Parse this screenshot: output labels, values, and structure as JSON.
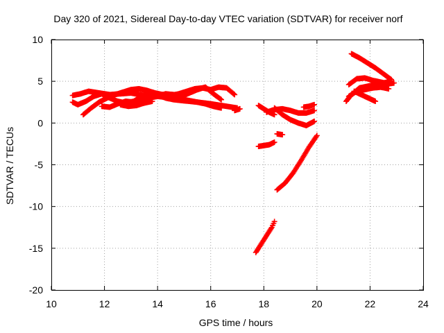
{
  "chart_data": {
    "type": "scatter",
    "title": "Day 320 of 2021, Sidereal Day-to-day VTEC variation (SDTVAR) for receiver norf",
    "xlabel": "GPS time / hours",
    "ylabel": "SDTVAR / TECUs",
    "xlim": [
      10,
      24
    ],
    "ylim": [
      -20,
      10
    ],
    "xticks": [
      "10",
      "12",
      "14",
      "16",
      "18",
      "20",
      "22",
      "24"
    ],
    "yticks": [
      "-20",
      "-15",
      "-10",
      "-5",
      "0",
      "5",
      "10"
    ],
    "grid": true,
    "marker_color": "#ff0000",
    "series": [
      {
        "x": [
          10.8,
          11.1,
          11.4,
          11.8,
          12.2,
          12.6,
          13.0,
          13.5,
          14.0,
          14.5,
          15.0,
          15.5,
          16.0,
          16.4,
          16.8,
          17.0
        ],
        "y": [
          3.3,
          3.5,
          3.8,
          3.6,
          3.4,
          3.5,
          3.6,
          3.3,
          3.2,
          3.0,
          2.8,
          2.5,
          2.3,
          2.1,
          1.9,
          1.8
        ]
      },
      {
        "x": [
          10.8,
          11.0,
          11.3,
          11.6,
          11.9,
          12.2,
          12.5,
          12.8,
          13.1,
          13.4,
          13.7,
          14.0,
          14.3,
          14.6,
          14.9,
          15.2,
          15.5,
          15.8,
          16.1,
          16.4
        ],
        "y": [
          2.5,
          2.2,
          2.6,
          3.2,
          3.5,
          3.0,
          2.6,
          2.4,
          2.6,
          3.2,
          3.6,
          3.4,
          3.0,
          2.8,
          2.7,
          2.6,
          2.5,
          2.3,
          2.0,
          1.8
        ]
      },
      {
        "x": [
          11.2,
          11.5,
          11.8,
          12.1,
          12.4,
          12.7,
          13.0,
          13.3,
          13.6,
          13.9,
          14.2,
          14.5,
          14.8,
          15.1,
          15.4,
          15.7,
          16.0,
          16.3,
          16.6,
          16.9
        ],
        "y": [
          1.0,
          1.8,
          2.5,
          3.0,
          3.4,
          3.7,
          4.0,
          4.1,
          3.9,
          3.6,
          3.4,
          3.3,
          3.5,
          3.8,
          4.1,
          4.2,
          4.0,
          4.3,
          4.2,
          3.4
        ]
      },
      {
        "x": [
          11.9,
          12.2,
          12.5,
          12.8,
          13.1,
          13.4,
          13.7,
          14.0,
          14.3,
          14.6,
          14.9,
          15.2,
          15.5,
          15.8,
          16.1,
          16.4
        ],
        "y": [
          2.0,
          1.9,
          2.3,
          2.6,
          2.5,
          2.8,
          3.0,
          3.2,
          3.5,
          3.4,
          3.2,
          3.6,
          4.0,
          4.3,
          3.5,
          2.8
        ]
      },
      {
        "x": [
          12.6,
          12.9,
          13.2,
          13.5,
          13.8
        ],
        "y": [
          2.2,
          2.0,
          2.1,
          2.4,
          2.6
        ]
      },
      {
        "x": [
          16.9,
          17.1
        ],
        "y": [
          1.5,
          1.7
        ]
      },
      {
        "x": [
          17.8,
          18.0,
          18.2,
          18.4
        ],
        "y": [
          2.1,
          1.7,
          1.3,
          1.0
        ]
      },
      {
        "x": [
          18.1,
          18.4,
          18.7,
          19.0,
          19.3,
          19.6,
          19.9
        ],
        "y": [
          1.3,
          1.6,
          1.7,
          1.5,
          1.2,
          1.2,
          1.5
        ]
      },
      {
        "x": [
          18.4,
          18.7,
          19.0,
          19.3,
          19.6,
          19.9
        ],
        "y": [
          1.8,
          1.0,
          0.4,
          0.0,
          -0.3,
          0.2
        ]
      },
      {
        "x": [
          19.5,
          19.7,
          19.9
        ],
        "y": [
          1.9,
          2.0,
          2.2
        ]
      },
      {
        "x": [
          17.8,
          18.0,
          18.2,
          18.4
        ],
        "y": [
          -2.8,
          -2.7,
          -2.6,
          -2.3
        ]
      },
      {
        "x": [
          18.5,
          18.7
        ],
        "y": [
          -1.3,
          -1.4
        ]
      },
      {
        "x": [
          18.5,
          18.8,
          19.1,
          19.4,
          19.7,
          20.0
        ],
        "y": [
          -8.0,
          -7.2,
          -6.0,
          -4.5,
          -2.9,
          -1.5
        ]
      },
      {
        "x": [
          17.7,
          17.9,
          18.1,
          18.3,
          18.4
        ],
        "y": [
          -15.5,
          -14.5,
          -13.5,
          -12.5,
          -11.8
        ]
      },
      {
        "x": [
          21.3,
          21.6,
          21.9,
          22.2,
          22.5,
          22.8
        ],
        "y": [
          8.3,
          7.8,
          7.2,
          6.6,
          5.9,
          5.2
        ]
      },
      {
        "x": [
          21.2,
          21.5,
          21.8,
          22.1,
          22.4,
          22.7,
          22.9
        ],
        "y": [
          4.6,
          5.3,
          5.4,
          5.1,
          4.9,
          4.7,
          4.8
        ]
      },
      {
        "x": [
          21.1,
          21.3,
          21.6,
          21.9,
          22.2,
          22.5,
          22.8
        ],
        "y": [
          2.6,
          3.4,
          4.2,
          4.4,
          4.6,
          4.8,
          5.0
        ]
      },
      {
        "x": [
          21.2,
          21.5,
          21.8,
          22.1,
          22.4,
          22.7
        ],
        "y": [
          3.2,
          3.8,
          4.0,
          4.2,
          4.3,
          4.1
        ]
      },
      {
        "x": [
          21.4,
          21.6,
          21.8,
          22.0,
          22.2
        ],
        "y": [
          3.8,
          3.5,
          3.2,
          2.9,
          2.6
        ]
      }
    ]
  }
}
